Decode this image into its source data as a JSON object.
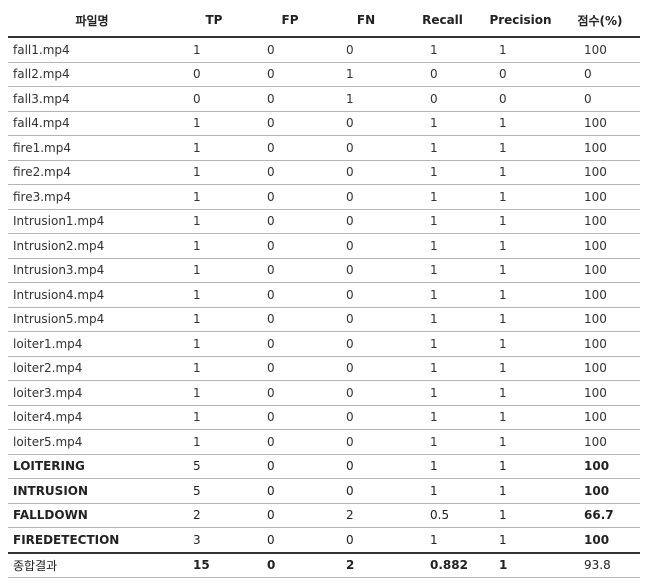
{
  "table": {
    "headers": [
      "파일명",
      "TP",
      "FP",
      "FN",
      "Recall",
      "Precision",
      "점수(%)"
    ],
    "rows": [
      {
        "name": "fall1.mp4",
        "tp": "1",
        "fp": "0",
        "fn": "0",
        "recall": "1",
        "precision": "1",
        "score": "100",
        "bold": false
      },
      {
        "name": "fall2.mp4",
        "tp": "0",
        "fp": "0",
        "fn": "1",
        "recall": "0",
        "precision": "0",
        "score": "0",
        "bold": false
      },
      {
        "name": "fall3.mp4",
        "tp": "0",
        "fp": "0",
        "fn": "1",
        "recall": "0",
        "precision": "0",
        "score": "0",
        "bold": false
      },
      {
        "name": "fall4.mp4",
        "tp": "1",
        "fp": "0",
        "fn": "0",
        "recall": "1",
        "precision": "1",
        "score": "100",
        "bold": false
      },
      {
        "name": "fire1.mp4",
        "tp": "1",
        "fp": "0",
        "fn": "0",
        "recall": "1",
        "precision": "1",
        "score": "100",
        "bold": false
      },
      {
        "name": "fire2.mp4",
        "tp": "1",
        "fp": "0",
        "fn": "0",
        "recall": "1",
        "precision": "1",
        "score": "100",
        "bold": false
      },
      {
        "name": "fire3.mp4",
        "tp": "1",
        "fp": "0",
        "fn": "0",
        "recall": "1",
        "precision": "1",
        "score": "100",
        "bold": false
      },
      {
        "name": "Intrusion1.mp4",
        "tp": "1",
        "fp": "0",
        "fn": "0",
        "recall": "1",
        "precision": "1",
        "score": "100",
        "bold": false
      },
      {
        "name": "Intrusion2.mp4",
        "tp": "1",
        "fp": "0",
        "fn": "0",
        "recall": "1",
        "precision": "1",
        "score": "100",
        "bold": false
      },
      {
        "name": "Intrusion3.mp4",
        "tp": "1",
        "fp": "0",
        "fn": "0",
        "recall": "1",
        "precision": "1",
        "score": "100",
        "bold": false
      },
      {
        "name": "Intrusion4.mp4",
        "tp": "1",
        "fp": "0",
        "fn": "0",
        "recall": "1",
        "precision": "1",
        "score": "100",
        "bold": false
      },
      {
        "name": "Intrusion5.mp4",
        "tp": "1",
        "fp": "0",
        "fn": "0",
        "recall": "1",
        "precision": "1",
        "score": "100",
        "bold": false
      },
      {
        "name": "loiter1.mp4",
        "tp": "1",
        "fp": "0",
        "fn": "0",
        "recall": "1",
        "precision": "1",
        "score": "100",
        "bold": false
      },
      {
        "name": "loiter2.mp4",
        "tp": "1",
        "fp": "0",
        "fn": "0",
        "recall": "1",
        "precision": "1",
        "score": "100",
        "bold": false
      },
      {
        "name": "loiter3.mp4",
        "tp": "1",
        "fp": "0",
        "fn": "0",
        "recall": "1",
        "precision": "1",
        "score": "100",
        "bold": false
      },
      {
        "name": "loiter4.mp4",
        "tp": "1",
        "fp": "0",
        "fn": "0",
        "recall": "1",
        "precision": "1",
        "score": "100",
        "bold": false
      },
      {
        "name": "loiter5.mp4",
        "tp": "1",
        "fp": "0",
        "fn": "0",
        "recall": "1",
        "precision": "1",
        "score": "100",
        "bold": false
      },
      {
        "name": "LOITERING",
        "tp": "5",
        "fp": "0",
        "fn": "0",
        "recall": "1",
        "precision": "1",
        "score": "100",
        "bold": true
      },
      {
        "name": "INTRUSION",
        "tp": "5",
        "fp": "0",
        "fn": "0",
        "recall": "1",
        "precision": "1",
        "score": "100",
        "bold": true
      },
      {
        "name": "FALLDOWN",
        "tp": "2",
        "fp": "0",
        "fn": "2",
        "recall": "0.5",
        "precision": "1",
        "score": "66.7",
        "bold": true
      },
      {
        "name": "FIREDETECTION",
        "tp": "3",
        "fp": "0",
        "fn": "0",
        "recall": "1",
        "precision": "1",
        "score": "100",
        "bold": true
      }
    ],
    "total": {
      "name": "종합결과",
      "tp": "15",
      "fp": "0",
      "fn": "2",
      "recall": "0.882",
      "precision": "1",
      "score": "93.8"
    }
  }
}
